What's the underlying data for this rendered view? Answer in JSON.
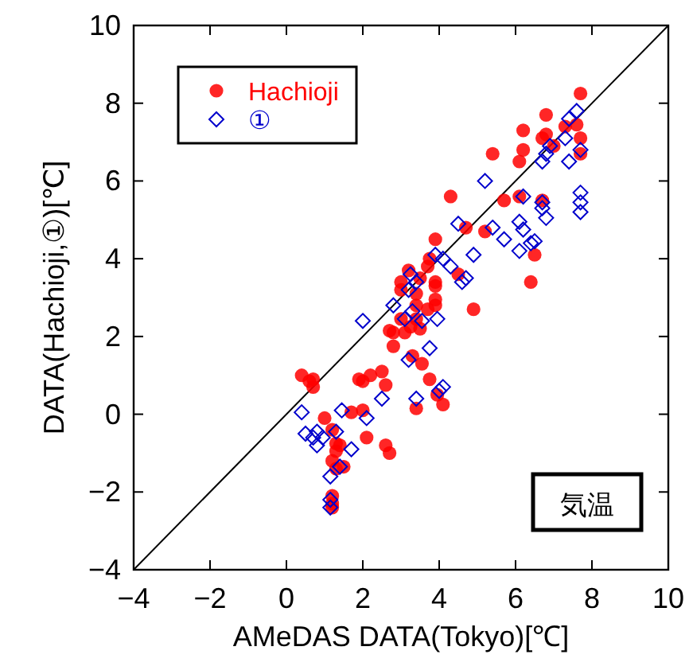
{
  "chart_data": {
    "type": "scatter",
    "xlabel": "AMeDAS DATA(Tokyo)[℃]",
    "ylabel": "DATA(Hachioji,①)[℃]",
    "xlim": [
      -4,
      10
    ],
    "ylim": [
      -4,
      10
    ],
    "xticks": [
      -4,
      -2,
      0,
      2,
      4,
      6,
      8,
      10
    ],
    "yticks": [
      -4,
      -2,
      0,
      2,
      4,
      6,
      8,
      10
    ],
    "grid": false,
    "legend": "top left",
    "annotations": [
      "気温"
    ],
    "series": [
      {
        "type": "line",
        "color": "#000000",
        "x": [
          -4,
          10
        ],
        "values": [
          -4,
          10
        ],
        "marker": "none"
      },
      {
        "name": "Hachioji",
        "color": "#ff0000",
        "marker": "circle",
        "x": [
          0.4,
          0.7,
          0.6,
          0.7,
          1.0,
          1.2,
          1.3,
          1.4,
          1.2,
          1.3,
          1.2,
          1.2,
          1.2,
          1.9,
          2.2,
          2.5,
          2.6,
          2.0,
          2.6,
          2.7,
          1.7,
          2.1,
          1.3,
          1.5,
          2.0,
          2.8,
          7.7,
          6.8,
          6.2,
          7.3,
          7.6,
          6.8,
          6.7,
          7.7,
          5.4,
          6.2,
          6.1,
          7.7,
          7.0,
          4.3,
          5.7,
          6.1,
          6.7,
          4.7,
          5.2,
          3.9,
          6.5,
          6.4,
          3.75,
          3.7,
          3.2,
          3.0,
          3.5,
          3.9,
          4.5,
          4.9,
          3.75,
          3.95,
          4.1,
          3.4,
          3.55,
          3.3,
          3.1,
          3.5,
          3.9,
          3.9,
          3.4,
          3.4,
          3.0,
          3.9,
          3.0,
          3.4,
          3.25,
          2.8,
          3.7,
          2.7
        ],
        "values": [
          1.0,
          0.9,
          0.85,
          0.7,
          -0.1,
          -0.4,
          -0.75,
          -0.8,
          -1.2,
          -1.4,
          -2.1,
          -2.3,
          -2.4,
          0.9,
          1.0,
          1.1,
          0.75,
          0.1,
          -0.8,
          -1.0,
          0.05,
          -0.6,
          -0.95,
          -1.35,
          0.85,
          2.1,
          8.25,
          7.7,
          7.3,
          7.4,
          7.45,
          7.2,
          7.1,
          7.1,
          6.7,
          6.8,
          6.5,
          6.7,
          6.9,
          5.6,
          5.5,
          5.6,
          5.5,
          4.8,
          4.7,
          4.5,
          4.1,
          3.4,
          4.0,
          3.8,
          3.7,
          3.4,
          3.5,
          3.4,
          3.6,
          2.7,
          0.9,
          0.5,
          0.25,
          0.15,
          1.3,
          1.5,
          2.1,
          2.2,
          2.8,
          2.95,
          2.8,
          2.45,
          2.45,
          3.3,
          3.2,
          3.1,
          2.25,
          1.75,
          2.7,
          2.15
        ]
      },
      {
        "name": "①",
        "color": "#0000cc",
        "marker": "diamond",
        "x": [
          7.6,
          7.4,
          7.3,
          6.9,
          7.7,
          6.8,
          6.7,
          7.4,
          5.2,
          6.2,
          7.7,
          7.7,
          7.7,
          6.7,
          6.7,
          6.8,
          4.5,
          5.4,
          5.7,
          6.1,
          6.2,
          6.4,
          6.5,
          6.1,
          4.9,
          3.9,
          4.1,
          4.3,
          4.7,
          3.25,
          3.4,
          4.6,
          3.2,
          3.95,
          3.75,
          3.2,
          4.1,
          4.0,
          3.4,
          3.1,
          3.55,
          3.3,
          2.0,
          2.8,
          2.5,
          2.1,
          1.7,
          1.45,
          1.3,
          0.4,
          0.5,
          0.7,
          0.8,
          0.8,
          0.95,
          1.15,
          1.4,
          1.15,
          1.15
        ],
        "values": [
          7.8,
          7.6,
          7.1,
          6.9,
          6.8,
          6.7,
          6.5,
          6.5,
          6.0,
          5.6,
          5.7,
          5.45,
          5.2,
          5.45,
          5.3,
          5.05,
          4.9,
          4.8,
          4.5,
          4.95,
          4.75,
          4.4,
          4.45,
          4.2,
          4.1,
          4.1,
          4.0,
          3.8,
          3.5,
          3.6,
          3.4,
          3.4,
          3.2,
          2.45,
          1.7,
          1.4,
          0.7,
          0.6,
          0.4,
          2.45,
          2.4,
          2.65,
          2.4,
          2.8,
          0.4,
          -0.1,
          -0.9,
          0.1,
          -0.45,
          0.05,
          -0.5,
          -0.6,
          -0.45,
          -0.8,
          -0.6,
          -1.6,
          -1.35,
          -2.2,
          -2.4
        ]
      }
    ]
  }
}
